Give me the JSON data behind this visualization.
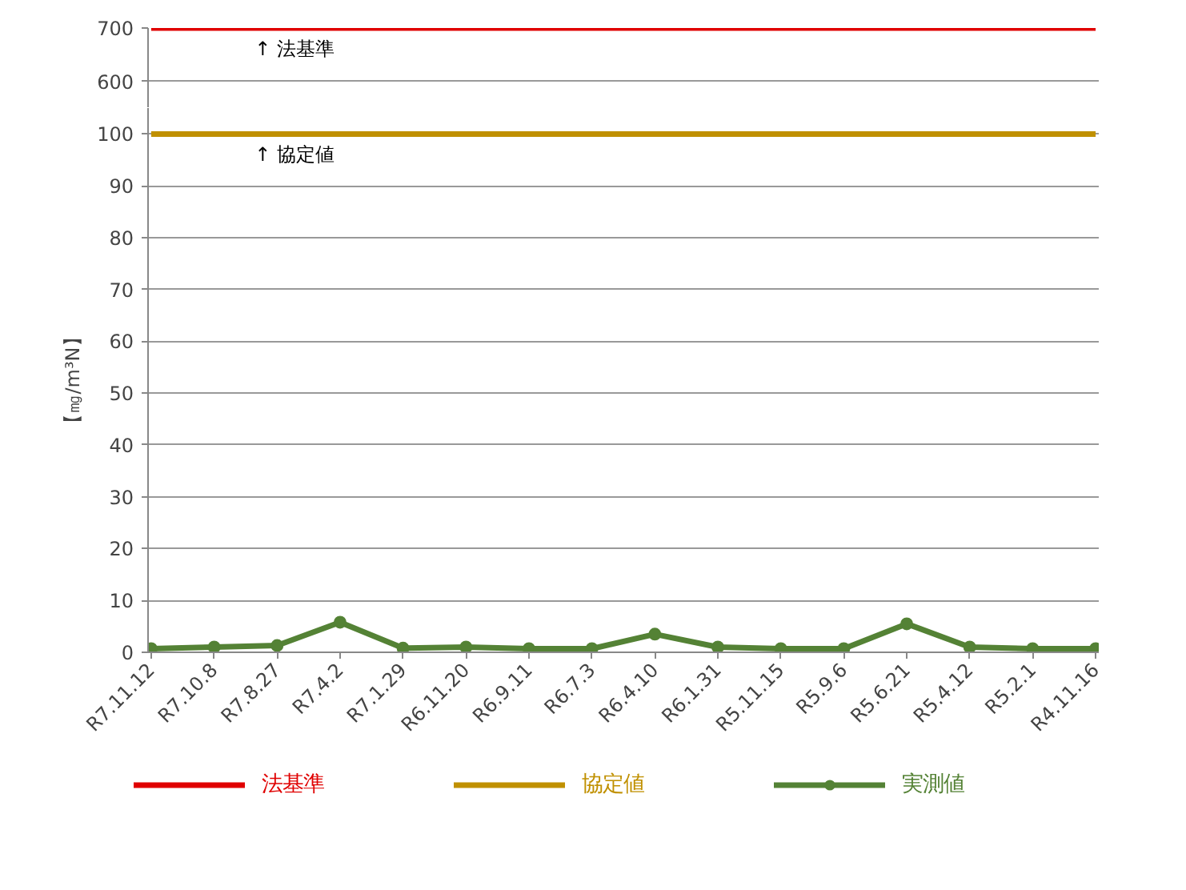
{
  "chart_data": [
    {
      "type": "line",
      "categories": [
        "R7.11.12",
        "R7.10.8",
        "R7.8.27",
        "R7.4.2",
        "R7.1.29",
        "R6.11.20",
        "R6.9.11",
        "R6.7.3",
        "R6.4.10",
        "R6.1.31",
        "R5.11.15",
        "R5.9.6",
        "R5.6.21",
        "R5.4.12",
        "R5.2.1",
        "R4.11.16"
      ],
      "series": [
        {
          "name": "法基準",
          "color": "#e00000",
          "values": [
            700,
            700,
            700,
            700,
            700,
            700,
            700,
            700,
            700,
            700,
            700,
            700,
            700,
            700,
            700,
            700
          ]
        }
      ],
      "ylim": [
        550,
        700
      ],
      "yticks": [
        600,
        700
      ],
      "grid": "y",
      "tick_labels": "y",
      "marker": "none",
      "annotations": [
        {
          "text": "↑ 法基準",
          "x": "R7.8.27",
          "y": 700
        }
      ]
    },
    {
      "type": "line",
      "categories": [
        "R7.11.12",
        "R7.10.8",
        "R7.8.27",
        "R7.4.2",
        "R7.1.29",
        "R6.11.20",
        "R6.9.11",
        "R6.7.3",
        "R6.4.10",
        "R6.1.31",
        "R5.11.15",
        "R5.9.6",
        "R5.6.21",
        "R5.4.12",
        "R5.2.1",
        "R4.11.16"
      ],
      "series": [
        {
          "name": "協定値",
          "color": "#c09000",
          "values": [
            100,
            100,
            100,
            100,
            100,
            100,
            100,
            100,
            100,
            100,
            100,
            100,
            100,
            100,
            100,
            100
          ],
          "marker": "none"
        },
        {
          "name": "実測値",
          "color": "#548235",
          "values": [
            0.7,
            1.0,
            1.3,
            5.8,
            0.8,
            1.0,
            0.7,
            0.7,
            3.5,
            1.0,
            0.7,
            0.7,
            5.5,
            1.0,
            0.7,
            0.7
          ],
          "marker": "circle"
        }
      ],
      "ylabel": "【㎎/m³N】",
      "ylim": [
        0,
        105
      ],
      "yticks": [
        0,
        10,
        20,
        30,
        40,
        50,
        60,
        70,
        80,
        90,
        100
      ],
      "grid": "y",
      "legend": "bottom",
      "annotations": [
        {
          "text": "↑ 協定値",
          "x": "R7.8.27",
          "y": 100
        }
      ]
    }
  ]
}
